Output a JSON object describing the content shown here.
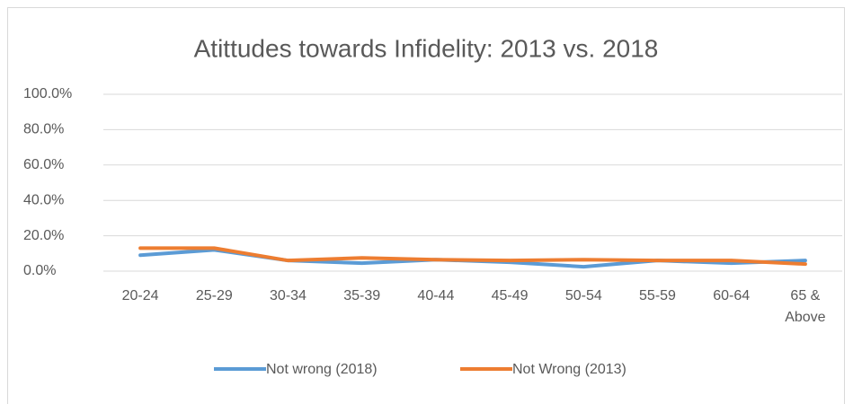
{
  "chart_data": {
    "type": "line",
    "title": "Atittudes towards Infidelity: 2013 vs. 2018",
    "categories": [
      "20-24",
      "25-29",
      "30-34",
      "35-39",
      "40-44",
      "45-49",
      "50-54",
      "55-59",
      "60-64",
      "65 & Above"
    ],
    "series": [
      {
        "name": "Not wrong (2018)",
        "color": "#5b9bd5",
        "values": [
          9,
          12,
          6,
          4.5,
          6.5,
          5,
          2.5,
          6,
          4.5,
          6
        ]
      },
      {
        "name": "Not Wrong (2013)",
        "color": "#ed7d31",
        "values": [
          13,
          13,
          6,
          7.5,
          6.5,
          6,
          6.5,
          6,
          6,
          4
        ]
      }
    ],
    "ylim": [
      0,
      100
    ],
    "yticks": [
      {
        "value": 0,
        "label": "0.0%"
      },
      {
        "value": 20,
        "label": "20.0%"
      },
      {
        "value": 40,
        "label": "40.0%"
      },
      {
        "value": 60,
        "label": "60.0%"
      },
      {
        "value": 80,
        "label": "80.0%"
      },
      {
        "value": 100,
        "label": "100.0%"
      }
    ],
    "grid": true,
    "legend": "bottom"
  }
}
